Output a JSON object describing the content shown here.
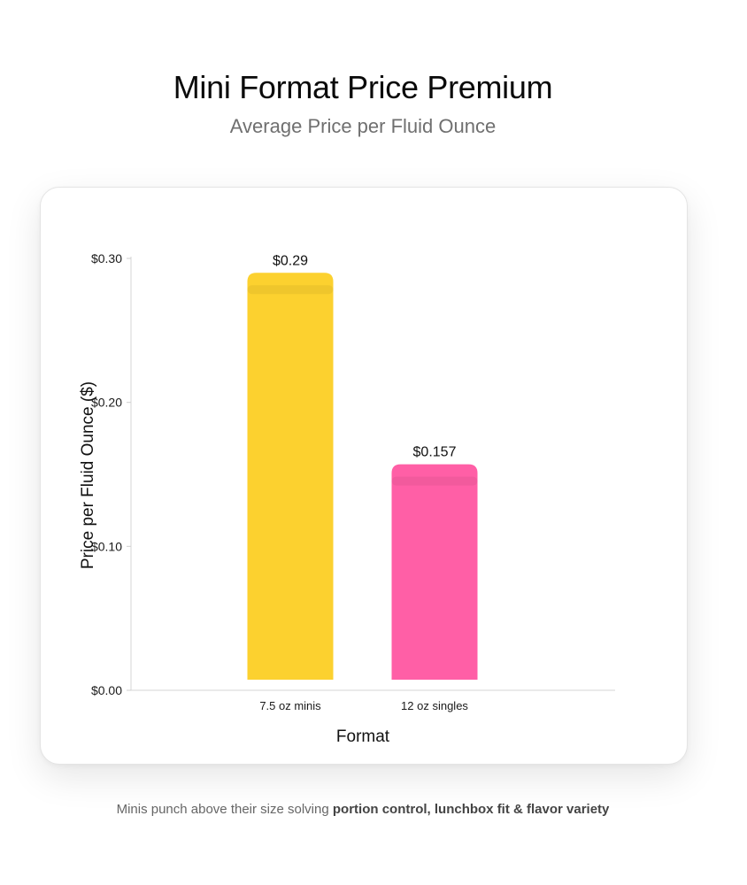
{
  "chart_data": {
    "type": "bar",
    "title": "Mini Format Price Premium",
    "subtitle": "Average Price per Fluid Ounce",
    "xlabel": "Format",
    "ylabel": "Price per Fluid Ounce ($)",
    "categories": [
      "7.5 oz minis",
      "12 oz singles"
    ],
    "values": [
      0.29,
      0.157
    ],
    "value_labels": [
      "$0.29",
      "$0.157"
    ],
    "colors": [
      "#FCD12F",
      "#FF5FA6"
    ],
    "yticks": [
      {
        "value": 0.0,
        "label": "$0.00"
      },
      {
        "value": 0.1,
        "label": "$0.10"
      },
      {
        "value": 0.2,
        "label": "$0.20"
      },
      {
        "value": 0.3,
        "label": "$0.30"
      }
    ],
    "ylim": [
      0,
      0.3
    ],
    "grid": false,
    "legend": "none"
  },
  "caption": {
    "prefix": "Minis punch above their size solving ",
    "highlight": "portion control, lunchbox fit & flavor variety"
  }
}
